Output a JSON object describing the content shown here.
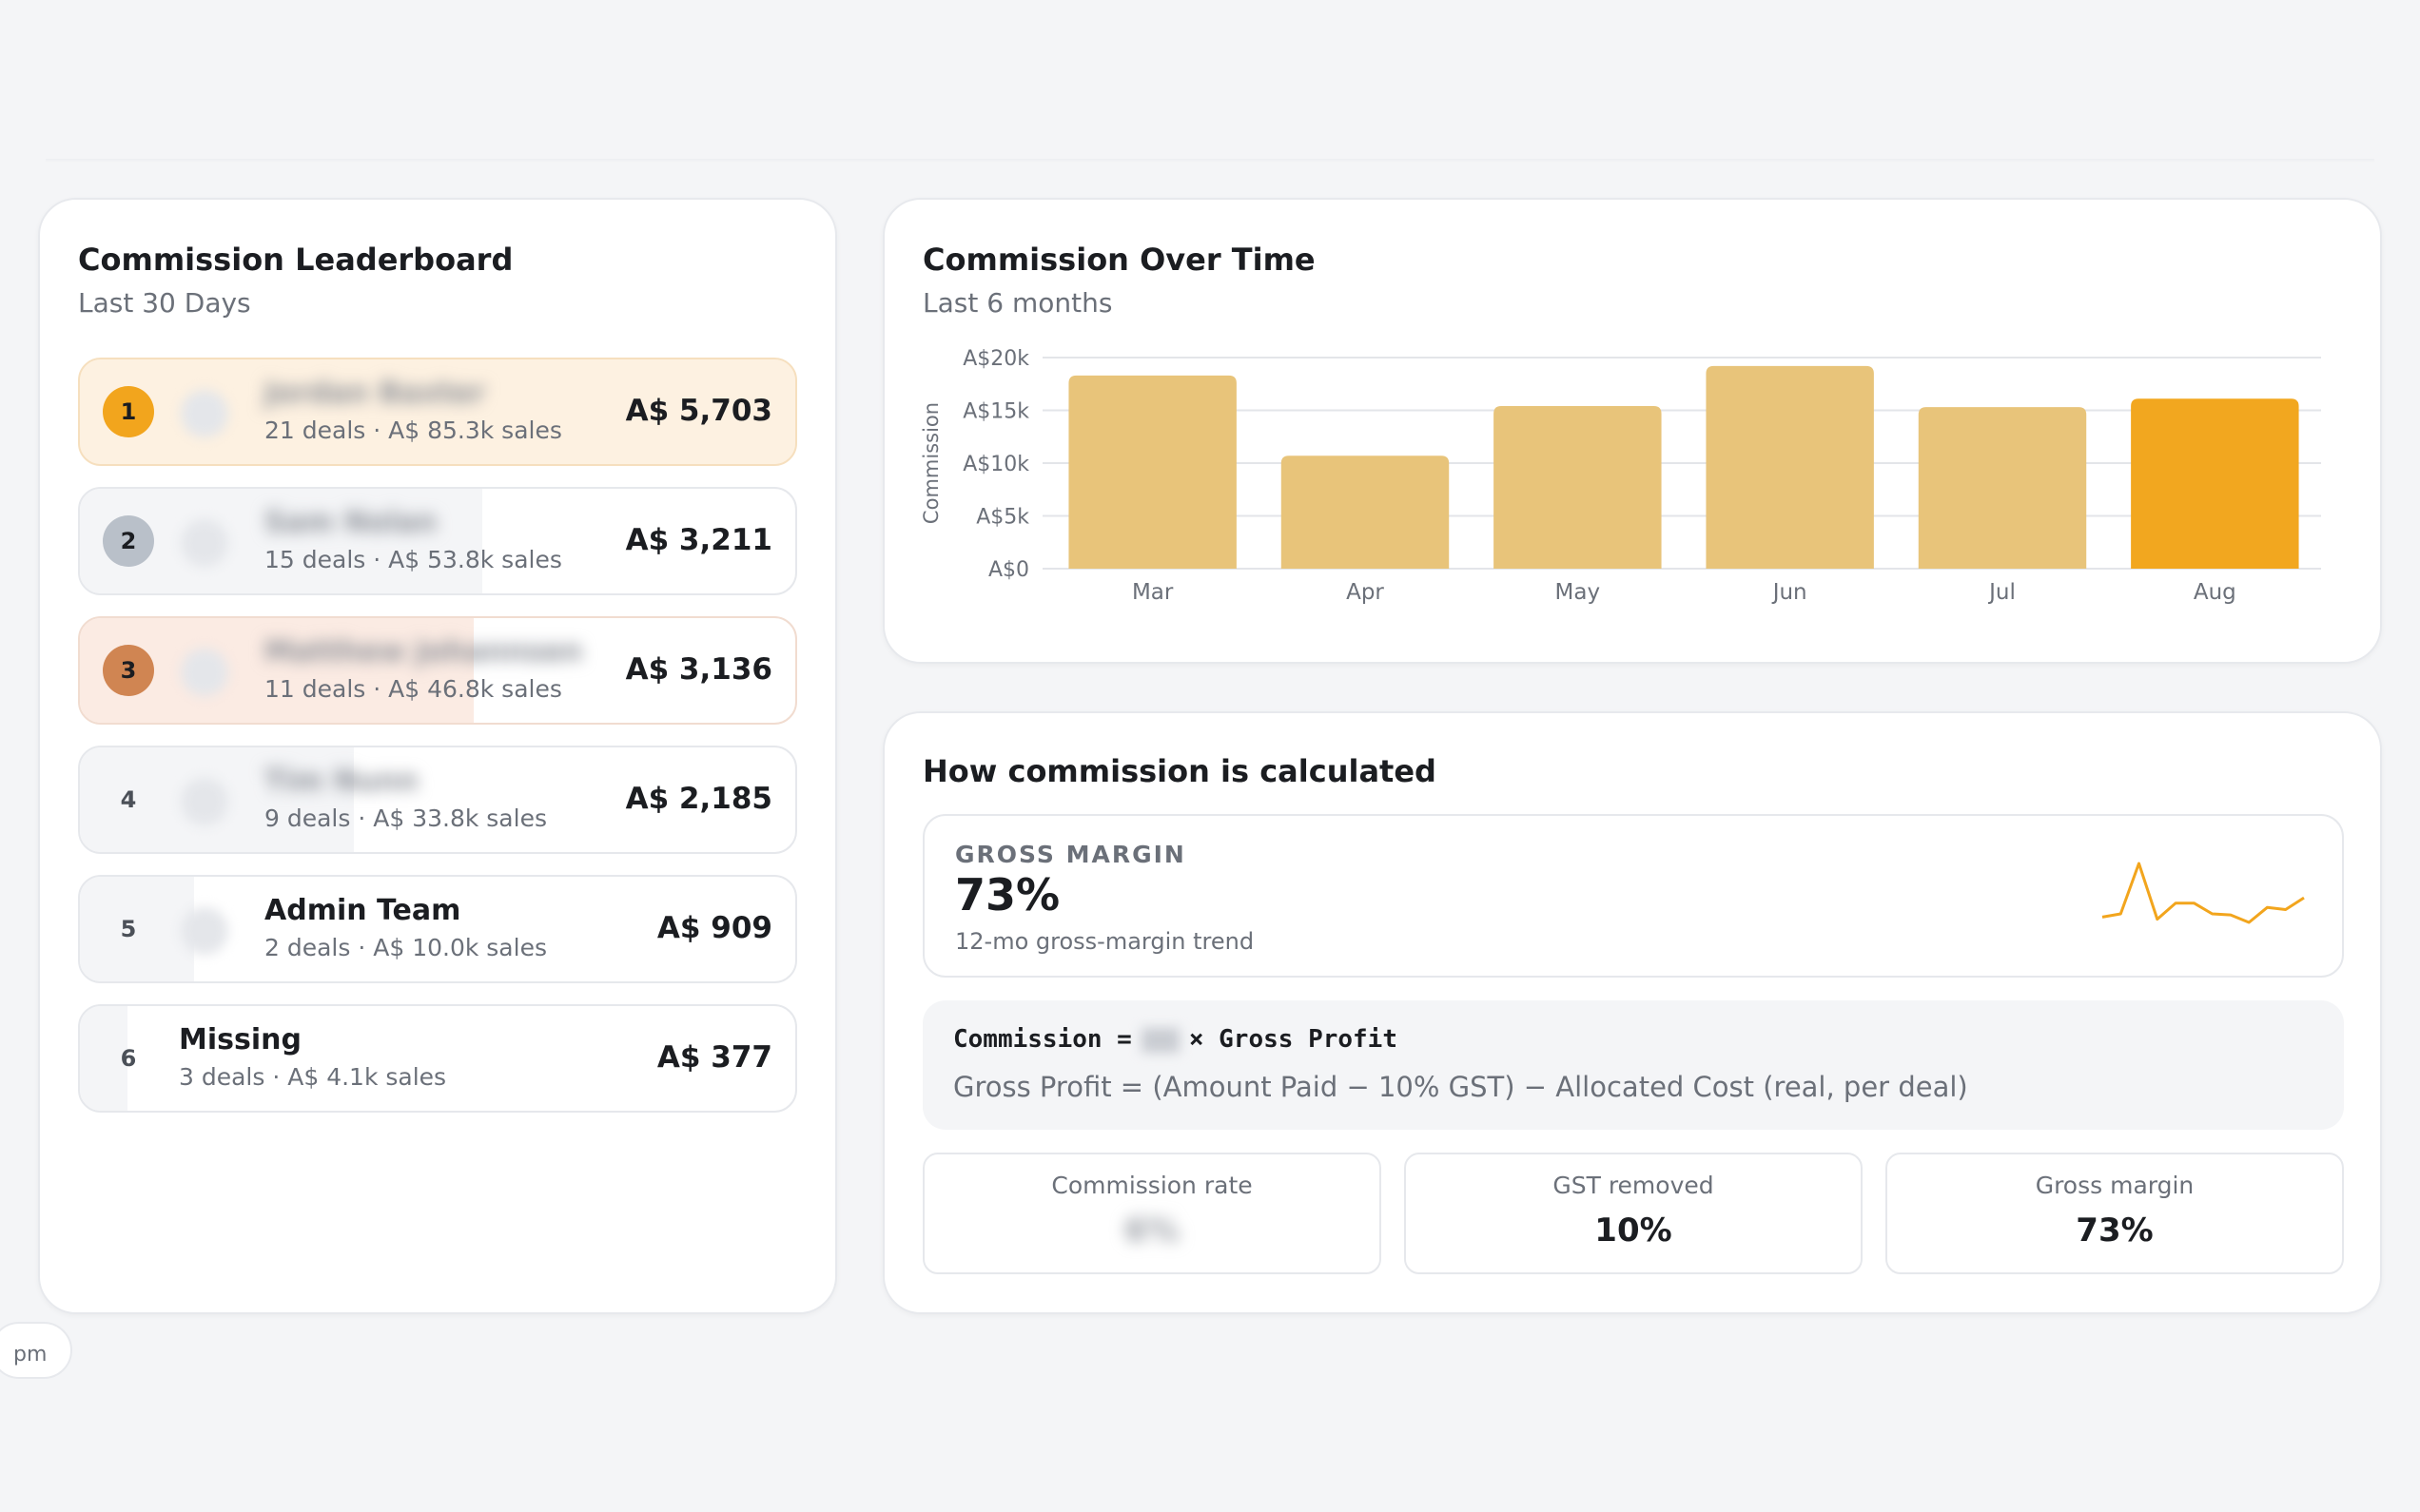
{
  "leaderboard": {
    "title": "Commission Leaderboard",
    "subtitle": "Last 30 Days",
    "rows": [
      {
        "rank": "1",
        "name": "Jordan Baxter",
        "meta": "21 deals · A$ 85.3k sales",
        "amount": "A$ 5,703",
        "share": 1.0
      },
      {
        "rank": "2",
        "name": "Sam Nolan",
        "meta": "15 deals · A$ 53.8k sales",
        "amount": "A$ 3,211",
        "share": 0.563
      },
      {
        "rank": "3",
        "name": "Matthew Johannsen",
        "meta": "11 deals · A$ 46.8k sales",
        "amount": "A$ 3,136",
        "share": 0.55
      },
      {
        "rank": "4",
        "name": "Tim Nunn",
        "meta": "9 deals · A$ 33.8k sales",
        "amount": "A$ 2,185",
        "share": 0.383
      },
      {
        "rank": "5",
        "name": "Admin Team",
        "meta": "2 deals · A$ 10.0k sales",
        "amount": "A$ 909",
        "share": 0.159
      },
      {
        "rank": "6",
        "name": "Missing",
        "meta": "3 deals · A$ 4.1k sales",
        "amount": "A$ 377",
        "share": 0.066
      }
    ]
  },
  "edge_chip": {
    "text": "pm"
  },
  "chart_card": {
    "title": "Commission Over Time",
    "subtitle": "Last 6 months"
  },
  "chart_data": {
    "type": "bar",
    "categories": [
      "Mar",
      "Apr",
      "May",
      "Jun",
      "Jul",
      "Aug"
    ],
    "values": [
      18300,
      10700,
      15400,
      19200,
      15300,
      16100
    ],
    "ylabel": "Commission",
    "ylim": [
      0,
      20000
    ],
    "yticks": [
      0,
      5000,
      10000,
      15000,
      20000
    ],
    "ytick_labels": [
      "A$0",
      "A$5k",
      "A$10k",
      "A$15k",
      "A$20k"
    ],
    "grid": true,
    "highlight_index": 5,
    "colors": {
      "bar": "#e8c47a",
      "highlight": "#f2a71f",
      "grid": "#e3e5e9",
      "tick": "#6b7079"
    }
  },
  "calc": {
    "title": "How commission is calculated",
    "gross_margin": {
      "label": "GROSS MARGIN",
      "value": "73%",
      "caption": "12-mo gross-margin trend",
      "trend": [
        71.5,
        71.8,
        76.5,
        71.3,
        72.8,
        72.8,
        71.8,
        71.7,
        71.0,
        72.4,
        72.2,
        73.3
      ]
    },
    "formula_prefix": "Commission =",
    "formula_suffix": "× Gross Profit",
    "formula_detail": "Gross Profit = (Amount Paid − 10% GST) − Allocated Cost (real, per deal)",
    "stats": [
      {
        "label": "Commission rate",
        "value": "6%"
      },
      {
        "label": "GST removed",
        "value": "10%"
      },
      {
        "label": "Gross margin",
        "value": "73%"
      }
    ]
  },
  "colors": {
    "accent": "#f2a51d",
    "gold": "#f2a51d",
    "silver": "#b9c0c9",
    "bronze": "#d08552"
  }
}
